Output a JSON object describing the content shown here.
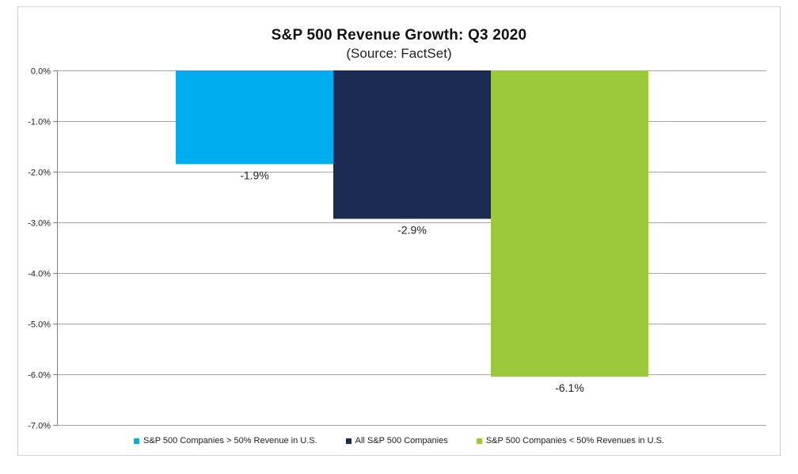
{
  "chart_data": {
    "type": "bar",
    "title": "S&P 500 Revenue Growth: Q3 2020",
    "subtitle": "(Source: FactSet)",
    "xlabel": "",
    "ylabel": "",
    "ylim": [
      -7.0,
      0.0
    ],
    "yticks": [
      0.0,
      -1.0,
      -2.0,
      -3.0,
      -4.0,
      -5.0,
      -6.0,
      -7.0
    ],
    "ytick_labels": [
      "0.0%",
      "-1.0%",
      "-2.0%",
      "-3.0%",
      "-4.0%",
      "-5.0%",
      "-6.0%",
      "-7.0%"
    ],
    "grid": true,
    "legend_position": "bottom",
    "series": [
      {
        "name": "S&P 500 Companies > 50% Revenue in U.S.",
        "value": -1.85,
        "label": "-1.9%",
        "color": "#00aeef"
      },
      {
        "name": "All S&P 500 Companies",
        "value": -2.93,
        "label": "-2.9%",
        "color": "#1b2a52"
      },
      {
        "name": "S&P 500 Companies < 50% Revenues in U.S.",
        "value": -6.05,
        "label": "-6.1%",
        "color": "#9bc93b"
      }
    ]
  }
}
